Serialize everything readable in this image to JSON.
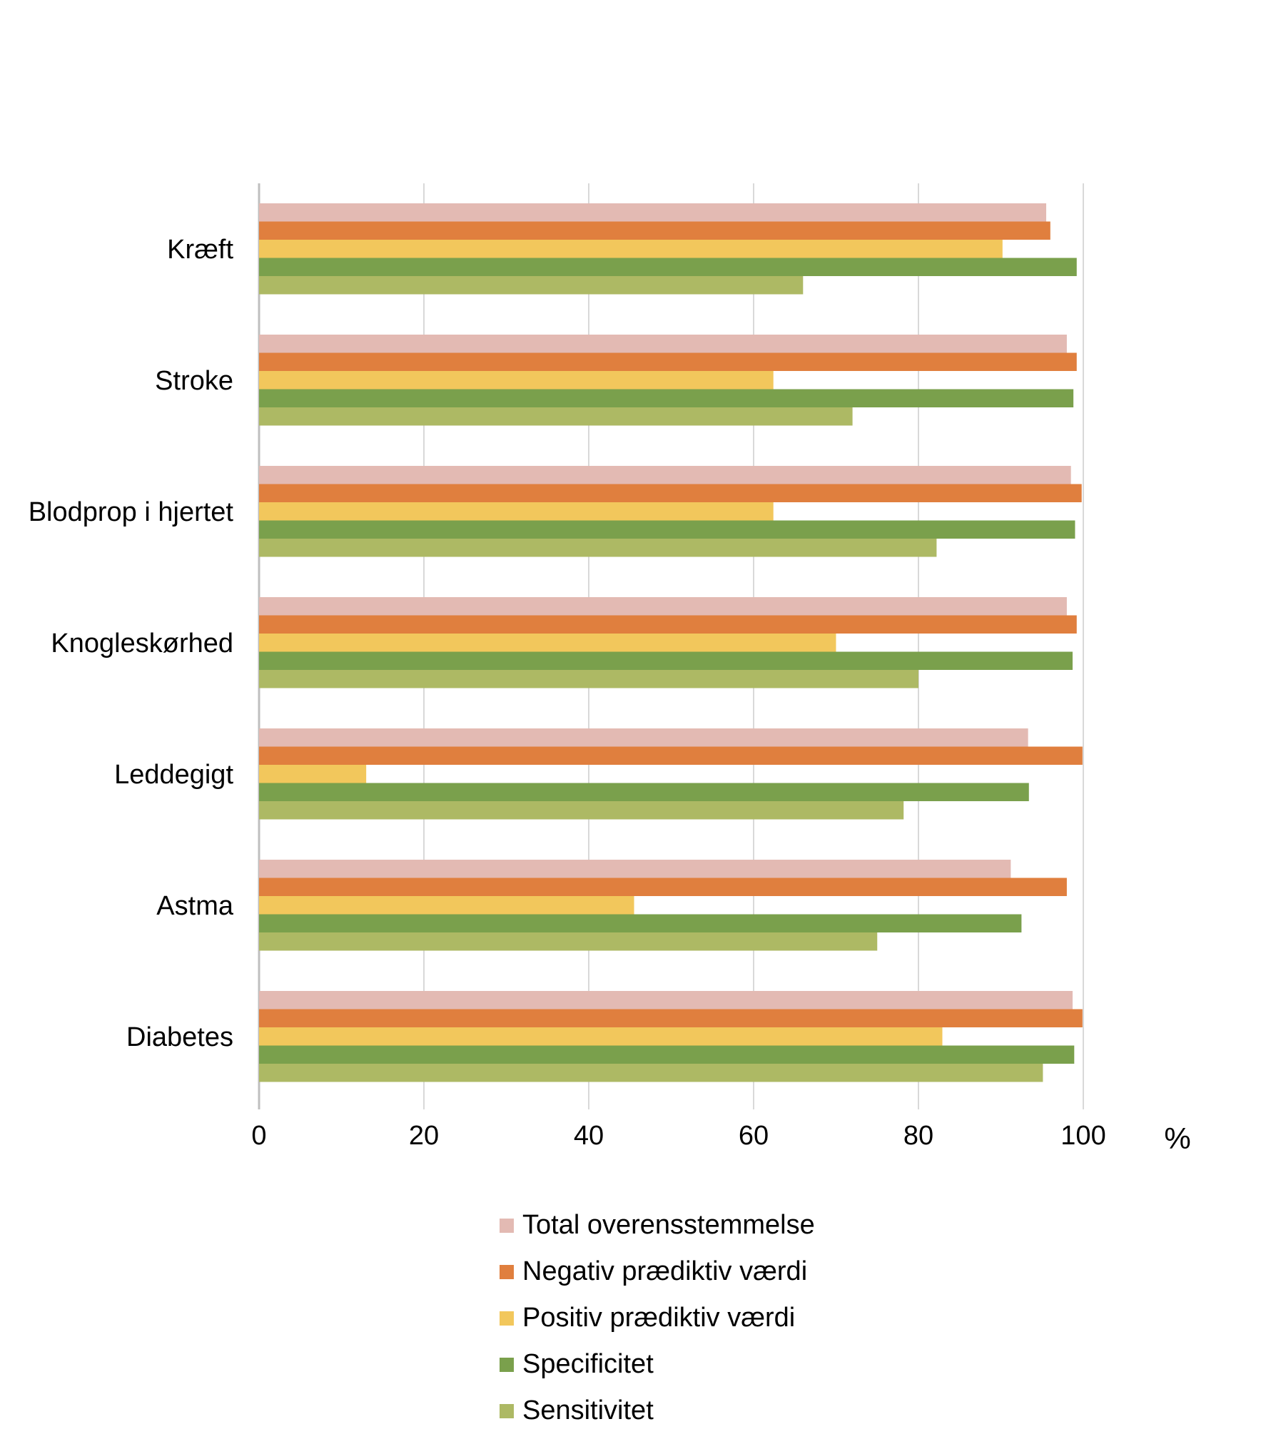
{
  "chart_data": {
    "type": "bar",
    "orientation": "horizontal",
    "categories": [
      "Kræft",
      "Stroke",
      "Blodprop i hjertet",
      "Knogleskørhed",
      "Leddegigt",
      "Astma",
      "Diabetes"
    ],
    "series": [
      {
        "name": "Total overensstemmelse",
        "color": "#e3bab3",
        "values": [
          95.5,
          98,
          98.5,
          98,
          93.3,
          91.2,
          98.7
        ]
      },
      {
        "name": "Negativ prædiktiv værdi",
        "color": "#e07f3e",
        "values": [
          96,
          99.2,
          99.8,
          99.2,
          99.9,
          98,
          99.9
        ]
      },
      {
        "name": "Positiv prædiktiv værdi",
        "color": "#f2c75c",
        "values": [
          90.2,
          62.4,
          62.4,
          70,
          13,
          45.5,
          82.9
        ]
      },
      {
        "name": "Specificitet",
        "color": "#7aa04c",
        "values": [
          99.2,
          98.8,
          99,
          98.7,
          93.4,
          92.5,
          98.9
        ]
      },
      {
        "name": "Sensitivitet",
        "color": "#adb964",
        "values": [
          66,
          72,
          82.2,
          80,
          78.2,
          75,
          95.1
        ]
      }
    ],
    "x_ticks": [
      "0",
      "20",
      "40",
      "60",
      "80",
      "100"
    ],
    "xlim": [
      0,
      100
    ],
    "unit_label": "%",
    "grid": true,
    "legend_position": "bottom"
  }
}
